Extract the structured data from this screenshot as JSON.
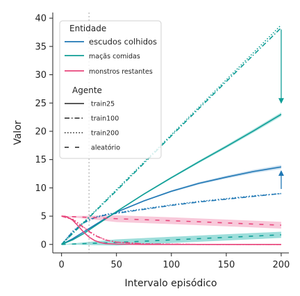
{
  "chart_data": {
    "type": "line",
    "title": "",
    "xlabel": "Intervalo episódico",
    "ylabel": "Valor",
    "xlim": [
      -8,
      207
    ],
    "ylim": [
      -1.5,
      41
    ],
    "xticks": [
      0,
      50,
      100,
      150,
      200
    ],
    "yticks": [
      0,
      5,
      10,
      15,
      20,
      25,
      30,
      35,
      40
    ],
    "vline_x": 25,
    "colors": {
      "escudos": "#1f77b4",
      "macas": "#0f9e96",
      "monstros": "#e8467c",
      "band_macas": "#7ed3cf",
      "band_monstros": "#f6b7cd"
    },
    "legend": {
      "entity_title": "Entidade",
      "entities": [
        {
          "label": "escudos colhidos",
          "color": "#1f77b4"
        },
        {
          "label": "maçãs comidas",
          "color": "#0f9e96"
        },
        {
          "label": "monstros restantes",
          "color": "#e8467c"
        }
      ],
      "agent_title": "Agente",
      "agents": [
        {
          "label": "train25",
          "dash": "solid"
        },
        {
          "label": "train100",
          "dash": "dashdot"
        },
        {
          "label": "train200",
          "dash": "dotted"
        },
        {
          "label": "aleatório",
          "dash": "loosedash"
        }
      ]
    },
    "arrows": [
      {
        "x": 200,
        "from": 38,
        "to": 25,
        "color": "#0f9e96"
      },
      {
        "x": 200,
        "from": 9.8,
        "to": 13,
        "color": "#1f77b4"
      }
    ],
    "series": [
      {
        "name": "escudos colhidos",
        "agent": "train25",
        "entity": "escudos",
        "x": [
          0,
          10,
          20,
          30,
          40,
          50,
          75,
          100,
          125,
          150,
          175,
          200
        ],
        "y": [
          0,
          1.0,
          2.2,
          3.4,
          4.6,
          5.7,
          7.7,
          9.4,
          10.8,
          11.9,
          12.9,
          13.7
        ]
      },
      {
        "name": "escudos colhidos",
        "agent": "train100",
        "entity": "escudos",
        "x": [
          0,
          10,
          20,
          30,
          40,
          50,
          75,
          100,
          125,
          150,
          175,
          200
        ],
        "y": [
          0,
          2.2,
          3.8,
          4.7,
          5.2,
          5.5,
          6.2,
          6.9,
          7.5,
          8.0,
          8.5,
          9.0
        ]
      },
      {
        "name": "escudos colhidos",
        "agent": "train200",
        "entity": "escudos",
        "x": [
          0,
          10,
          20,
          30,
          40,
          50,
          75,
          100,
          125,
          150,
          175,
          200
        ],
        "y": [
          0,
          2.3,
          3.9,
          4.8,
          5.3,
          5.6,
          6.3,
          7.0,
          7.6,
          8.1,
          8.6,
          9.0
        ]
      },
      {
        "name": "maçãs comidas",
        "agent": "train25",
        "entity": "macas",
        "x": [
          0,
          10,
          20,
          30,
          40,
          50,
          75,
          100,
          125,
          150,
          175,
          200
        ],
        "y": [
          0,
          0.8,
          1.9,
          3.2,
          4.5,
          5.8,
          8.9,
          11.8,
          14.6,
          17.3,
          20.1,
          23.0
        ]
      },
      {
        "name": "maçãs comidas",
        "agent": "train100",
        "entity": "macas",
        "x": [
          0,
          50,
          100,
          150,
          200
        ],
        "y": [
          0,
          9.5,
          19.2,
          28.8,
          38.3
        ]
      },
      {
        "name": "maçãs comidas",
        "agent": "train200",
        "entity": "macas",
        "x": [
          0,
          50,
          100,
          150,
          200
        ],
        "y": [
          0,
          9.7,
          19.4,
          29.1,
          38.8
        ]
      },
      {
        "name": "maçãs comidas",
        "agent": "aleatório",
        "entity": "macas",
        "x": [
          0,
          50,
          100,
          150,
          200
        ],
        "y": [
          0,
          0.35,
          0.8,
          1.25,
          1.7
        ]
      },
      {
        "name": "monstros restantes",
        "agent": "train25",
        "entity": "monstros",
        "x": [
          0,
          5,
          10,
          15,
          20,
          25,
          30,
          35,
          40,
          50,
          75,
          100,
          150,
          200
        ],
        "y": [
          5,
          4.9,
          4.3,
          3.3,
          2.2,
          1.3,
          0.7,
          0.35,
          0.15,
          0.05,
          0,
          0,
          0,
          0
        ]
      },
      {
        "name": "monstros restantes",
        "agent": "train100",
        "entity": "monstros",
        "x": [
          0,
          10,
          20,
          30,
          40,
          50,
          75,
          100,
          125,
          150,
          200
        ],
        "y": [
          5,
          4.4,
          3.0,
          1.6,
          0.8,
          0.4,
          0.1,
          0.05,
          0,
          0,
          0
        ]
      },
      {
        "name": "monstros restantes",
        "agent": "train200",
        "entity": "monstros",
        "x": [
          0,
          10,
          20,
          30,
          40,
          50,
          75,
          100,
          125,
          150,
          200
        ],
        "y": [
          5,
          4.5,
          3.1,
          1.7,
          0.8,
          0.4,
          0.1,
          0.05,
          0,
          0,
          0
        ]
      },
      {
        "name": "monstros restantes",
        "agent": "aleatório",
        "entity": "monstros",
        "x": [
          0,
          50,
          100,
          150,
          200
        ],
        "y": [
          5,
          4.55,
          4.2,
          3.8,
          3.4
        ]
      }
    ]
  }
}
